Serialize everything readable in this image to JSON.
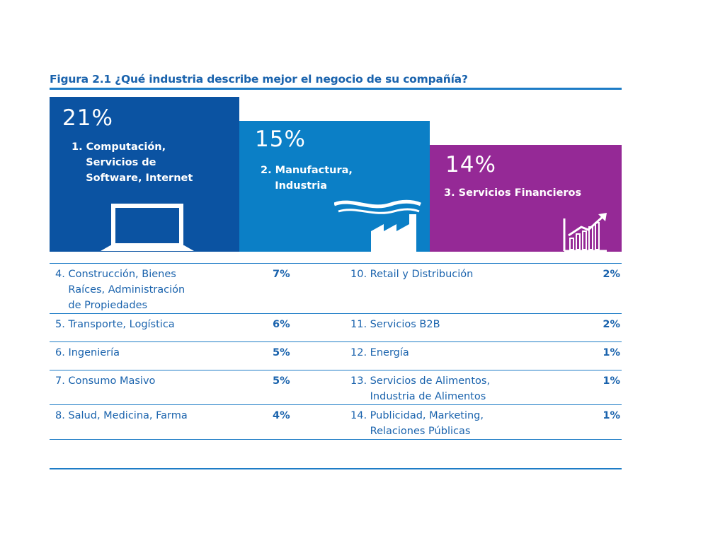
{
  "title": "Figura 2.1 ¿Qué industria describe mejor el negocio de su compañía?",
  "colors": {
    "blue_dark": "#0b53a2",
    "blue": "#0b7fc6",
    "purple": "#952996",
    "text": "#1a63ad",
    "rule": "#1d7cc6"
  },
  "blocks": [
    {
      "pct": "21%",
      "label": "1. Computación,\n    Servicios de\n    Software, Internet",
      "icon": "laptop-icon"
    },
    {
      "pct": "15%",
      "label": "2. Manufactura,\n    Industria",
      "icon": "factory-icon"
    },
    {
      "pct": "14%",
      "label": "3. Servicios Financieros",
      "icon": "growth-chart-icon"
    }
  ],
  "rows": [
    {
      "left_name": "4. Construcción, Bienes\n    Raíces, Administración\n    de Propiedades",
      "left_pct": "7%",
      "right_name": "10. Retail y Distribución",
      "right_pct": "2%"
    },
    {
      "left_name": "5. Transporte, Logística",
      "left_pct": "6%",
      "right_name": "11. Servicios B2B",
      "right_pct": "2%"
    },
    {
      "left_name": "6. Ingeniería",
      "left_pct": "5%",
      "right_name": "12. Energía",
      "right_pct": "1%"
    },
    {
      "left_name": "7. Consumo Masivo",
      "left_pct": "5%",
      "right_name": "13. Servicios de Alimentos,\n      Industria de Alimentos",
      "right_pct": "1%"
    },
    {
      "left_name": "8. Salud, Medicina, Farma",
      "left_pct": "4%",
      "right_name": "14. Publicidad, Marketing,\n      Relaciones Públicas",
      "right_pct": "1%"
    }
  ],
  "chart_data": {
    "type": "bar",
    "title": "Figura 2.1 ¿Qué industria describe mejor el negocio de su compañía?",
    "categories": [
      "1. Computación, Servicios de Software, Internet",
      "2. Manufactura, Industria",
      "3. Servicios Financieros",
      "4. Construcción, Bienes Raíces, Administración de Propiedades",
      "5. Transporte, Logística",
      "6. Ingeniería",
      "7. Consumo Masivo",
      "8. Salud, Medicina, Farma",
      "10. Retail y Distribución",
      "11. Servicios B2B",
      "12. Energía",
      "13. Servicios de Alimentos, Industria de Alimentos",
      "14. Publicidad, Marketing, Relaciones Públicas"
    ],
    "values": [
      21,
      15,
      14,
      7,
      6,
      5,
      5,
      4,
      2,
      2,
      1,
      1,
      1
    ],
    "xlabel": "",
    "ylabel": "",
    "unit": "%",
    "grid": false
  }
}
